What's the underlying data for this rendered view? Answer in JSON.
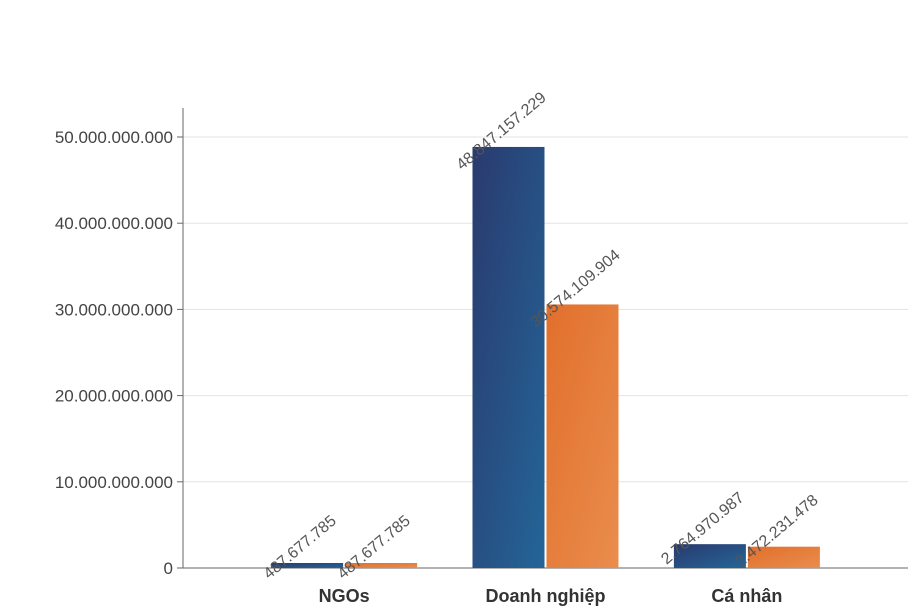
{
  "chart_data": {
    "type": "bar",
    "categories": [
      "NGOs",
      "Doanh nghiệp",
      "Cá nhân"
    ],
    "series": [
      {
        "values": [
          487677785,
          48847157229,
          2764970987
        ],
        "data_labels": [
          "487.677.785",
          "48.847.157.229",
          "2.764.970.987"
        ],
        "color": "#1f4e79"
      },
      {
        "values": [
          487677785,
          30574109904,
          2472231478
        ],
        "data_labels": [
          "487.677.785",
          "30.574.109.904",
          "2.472.231.478"
        ],
        "color": "#e8773a"
      }
    ],
    "y_ticks": [
      0,
      10000000000,
      20000000000,
      30000000000,
      40000000000,
      50000000000
    ],
    "y_tick_labels": [
      "0",
      "10.000.000.000",
      "20.000.000.000",
      "30.000.000.000",
      "40.000.000.000",
      "50.000.000.000"
    ],
    "ylim": [
      0,
      50000000000
    ],
    "grid": true,
    "title": "",
    "xlabel": "",
    "ylabel": ""
  }
}
